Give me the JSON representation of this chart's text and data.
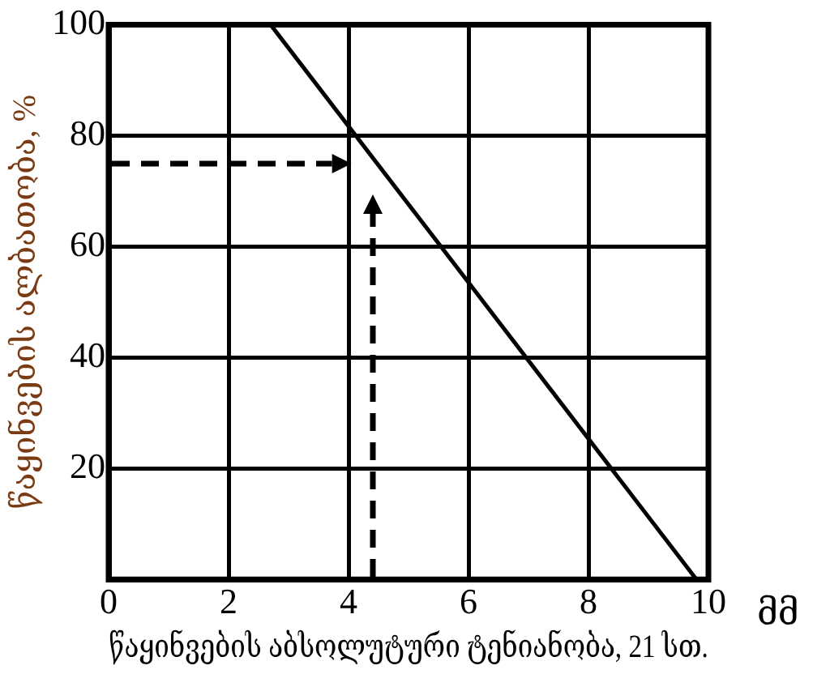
{
  "chart_data": {
    "type": "line",
    "x": [
      2.7,
      9.8
    ],
    "values": [
      100,
      0
    ],
    "color": "#000000",
    "xlabel": "წაყინვების აბსოლუტური ტენიანობა, 21 სთ.",
    "ylabel": "წაყინვების ალბათობა, %",
    "xlim": [
      0,
      10
    ],
    "xticks": [
      0,
      2,
      4,
      6,
      8,
      10
    ],
    "ylim": [
      0,
      100
    ],
    "yticks": [
      {
        "value": 0,
        "label": null
      },
      20,
      40,
      60,
      80,
      100
    ],
    "grid": true,
    "legend": false,
    "marker": "none",
    "line_style": "solid",
    "annotations": [
      "მმ"
    ]
  }
}
